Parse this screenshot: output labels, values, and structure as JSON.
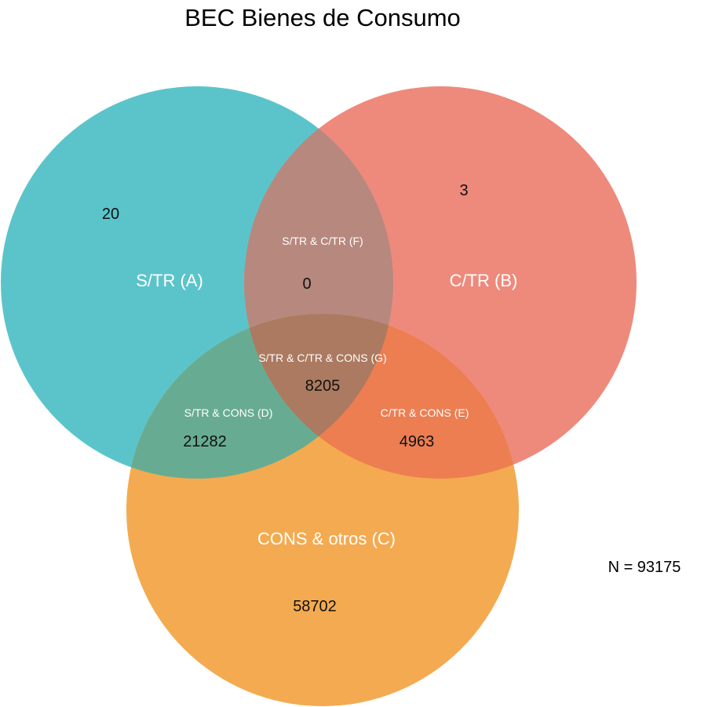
{
  "title": "BEC Bienes de Consumo",
  "total": "N = 93175",
  "colors": {
    "set_a": "#5BC4CB",
    "set_b": "#EE8A7C",
    "set_c": "#F4AA50",
    "region_ab": "#B7887E",
    "region_ac": "#67AC92",
    "region_bc": "#EC7E52",
    "region_abc": "#AB7A60"
  },
  "sets": {
    "a": {
      "label": "S/TR (A)",
      "only_count": "20"
    },
    "b": {
      "label": "C/TR (B)",
      "only_count": "3"
    },
    "c": {
      "label": "CONS & otros (C)",
      "only_count": "58702"
    }
  },
  "intersections": {
    "ab": {
      "label": "S/TR & C/TR (F)",
      "count": "0"
    },
    "ac": {
      "label": "S/TR & CONS (D)",
      "count": "21282"
    },
    "bc": {
      "label": "C/TR & CONS (E)",
      "count": "4963"
    },
    "abc": {
      "label": "S/TR & C/TR & CONS (G)",
      "count": "8205"
    }
  }
}
